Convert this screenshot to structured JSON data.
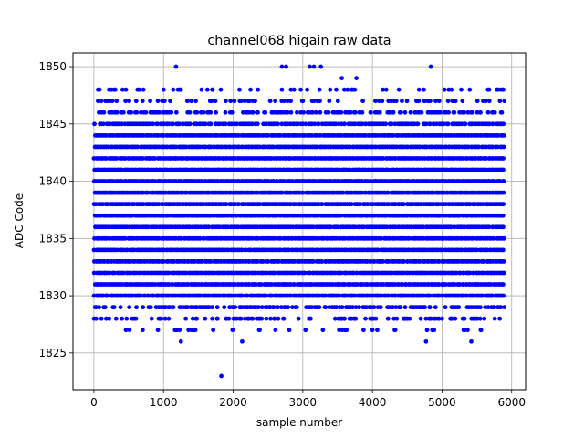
{
  "chart_data": {
    "type": "scatter",
    "title": "channel068 higain raw data",
    "xlabel": "sample number",
    "ylabel": "ADC Code",
    "xlim": [
      -300,
      6200
    ],
    "ylim": [
      1821.8,
      1851.2
    ],
    "xticks": [
      0,
      1000,
      2000,
      3000,
      4000,
      5000,
      6000
    ],
    "yticks": [
      1825,
      1830,
      1835,
      1840,
      1845,
      1850
    ],
    "grid": true,
    "marker_color": "#0000ff",
    "series": [
      {
        "name": "",
        "n_samples": 5900,
        "density": {
          "1823": 0.02,
          "1826": 0.05,
          "1827": 0.15,
          "1828": 0.35,
          "1829": 0.6,
          "1830": 1.0,
          "1831": 1.0,
          "1832": 1.0,
          "1833": 1.0,
          "1834": 1.0,
          "1835": 1.0,
          "1836": 1.0,
          "1837": 1.0,
          "1838": 1.0,
          "1839": 1.0,
          "1840": 1.0,
          "1841": 1.0,
          "1842": 1.0,
          "1843": 1.0,
          "1844": 1.0,
          "1845": 0.85,
          "1846": 0.55,
          "1847": 0.3,
          "1848": 0.15,
          "1849": 0.05,
          "1850": 0.04
        },
        "outliers": [
          {
            "x": 1830,
            "y": 1823
          },
          {
            "x": 1250,
            "y": 1826
          },
          {
            "x": 2130,
            "y": 1826
          },
          {
            "x": 4770,
            "y": 1826
          },
          {
            "x": 5420,
            "y": 1826
          },
          {
            "x": 460,
            "y": 1827
          },
          {
            "x": 700,
            "y": 1827
          },
          {
            "x": 920,
            "y": 1827
          },
          {
            "x": 1230,
            "y": 1827
          },
          {
            "x": 1360,
            "y": 1827
          },
          {
            "x": 4000,
            "y": 1827
          },
          {
            "x": 4070,
            "y": 1827
          },
          {
            "x": 4860,
            "y": 1827
          },
          {
            "x": 5310,
            "y": 1827
          },
          {
            "x": 5560,
            "y": 1827
          },
          {
            "x": 470,
            "y": 1828
          },
          {
            "x": 580,
            "y": 1828
          },
          {
            "x": 830,
            "y": 1828
          },
          {
            "x": 970,
            "y": 1828
          },
          {
            "x": 1420,
            "y": 1828
          },
          {
            "x": 1700,
            "y": 1828
          },
          {
            "x": 1900,
            "y": 1828
          },
          {
            "x": 2210,
            "y": 1828
          },
          {
            "x": 2280,
            "y": 1828
          },
          {
            "x": 2590,
            "y": 1828
          },
          {
            "x": 2720,
            "y": 1828
          },
          {
            "x": 3110,
            "y": 1828
          },
          {
            "x": 3560,
            "y": 1828
          },
          {
            "x": 3900,
            "y": 1828
          },
          {
            "x": 4350,
            "y": 1828
          },
          {
            "x": 4880,
            "y": 1828
          },
          {
            "x": 5000,
            "y": 1828
          },
          {
            "x": 5140,
            "y": 1828
          },
          {
            "x": 5450,
            "y": 1828
          },
          {
            "x": 1180,
            "y": 1850
          },
          {
            "x": 2700,
            "y": 1850
          },
          {
            "x": 2760,
            "y": 1850
          },
          {
            "x": 3100,
            "y": 1850
          },
          {
            "x": 3160,
            "y": 1850
          },
          {
            "x": 3260,
            "y": 1850
          },
          {
            "x": 4840,
            "y": 1850
          },
          {
            "x": 3560,
            "y": 1849
          },
          {
            "x": 3770,
            "y": 1849
          },
          {
            "x": 60,
            "y": 1848
          },
          {
            "x": 460,
            "y": 1848
          },
          {
            "x": 1250,
            "y": 1848
          },
          {
            "x": 1630,
            "y": 1848
          },
          {
            "x": 1700,
            "y": 1848
          },
          {
            "x": 2250,
            "y": 1848
          },
          {
            "x": 2700,
            "y": 1848
          },
          {
            "x": 2830,
            "y": 1848
          },
          {
            "x": 2970,
            "y": 1848
          },
          {
            "x": 3240,
            "y": 1848
          },
          {
            "x": 3480,
            "y": 1848
          },
          {
            "x": 4150,
            "y": 1848
          },
          {
            "x": 4380,
            "y": 1848
          },
          {
            "x": 5800,
            "y": 1848
          },
          {
            "x": 5880,
            "y": 1848
          }
        ]
      }
    ]
  }
}
